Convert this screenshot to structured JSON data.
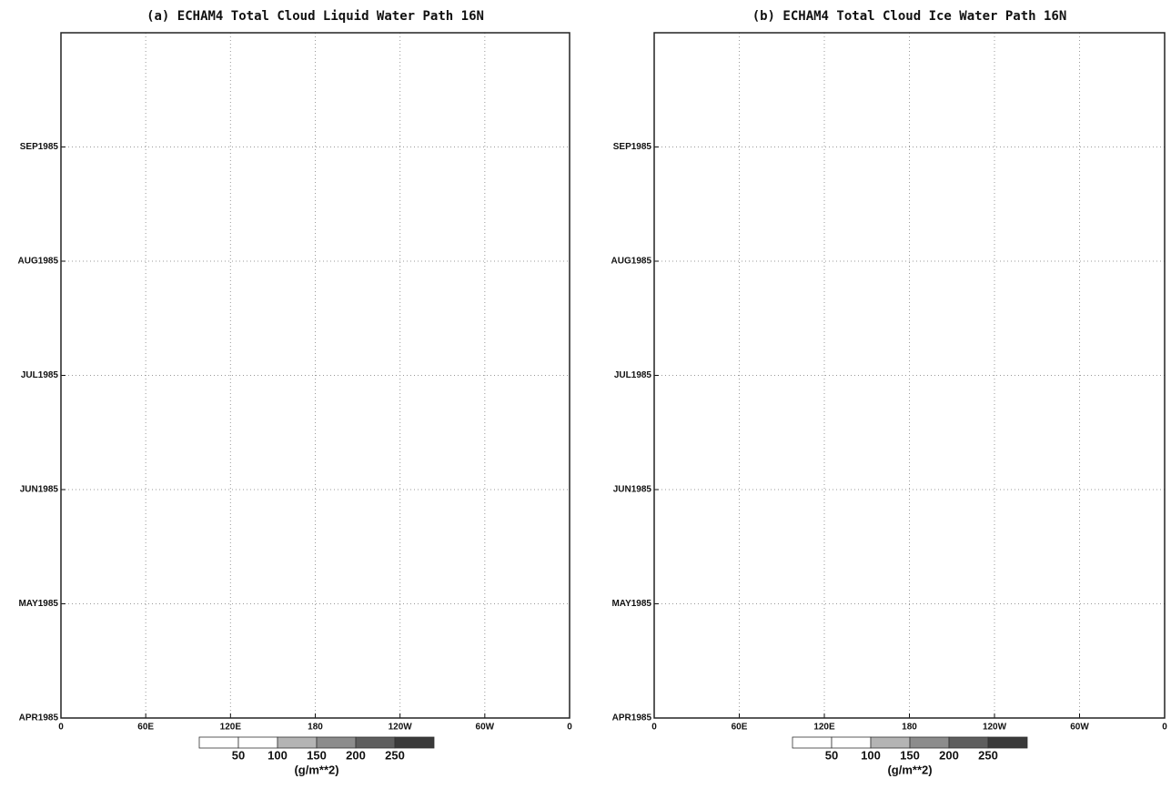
{
  "chart_data": [
    {
      "type": "heatmap",
      "title": "(a) ECHAM4 Total Cloud Liquid Water Path  16N",
      "xlim": [
        0,
        360
      ],
      "xticks": [
        0,
        {
          "value": 60,
          "label": "60E"
        },
        {
          "value": 120,
          "label": "120E"
        },
        180,
        {
          "value": 240,
          "label": "120W"
        },
        {
          "value": 300,
          "label": "60W"
        },
        {
          "value": 360,
          "label": "0"
        }
      ],
      "yticks": [
        "APR1985",
        "MAY1985",
        "JUN1985",
        "JUL1985",
        "AUG1985",
        "SEP1985"
      ],
      "grid": true,
      "colorbar": {
        "levels": [
          50,
          100,
          150,
          200,
          250
        ],
        "colors": [
          "#ffffff",
          "#ffffff",
          "#b4b4b4",
          "#8c8c8c",
          "#5e5e5e",
          "#3a3a3a"
        ],
        "label": "(g/m**2)"
      }
    },
    {
      "type": "heatmap",
      "title": "(b) ECHAM4 Total Cloud Ice Water Path  16N",
      "xlim": [
        0,
        360
      ],
      "xticks": [
        0,
        {
          "value": 60,
          "label": "60E"
        },
        {
          "value": 120,
          "label": "120E"
        },
        180,
        {
          "value": 240,
          "label": "120W"
        },
        {
          "value": 300,
          "label": "60W"
        },
        {
          "value": 360,
          "label": "0"
        }
      ],
      "yticks": [
        "APR1985",
        "MAY1985",
        "JUN1985",
        "JUL1985",
        "AUG1985",
        "SEP1985"
      ],
      "grid": true,
      "colorbar": {
        "levels": [
          50,
          100,
          150,
          200,
          250
        ],
        "colors": [
          "#ffffff",
          "#ffffff",
          "#b4b4b4",
          "#8c8c8c",
          "#5e5e5e",
          "#3a3a3a"
        ],
        "label": "(g/m**2)"
      }
    }
  ]
}
